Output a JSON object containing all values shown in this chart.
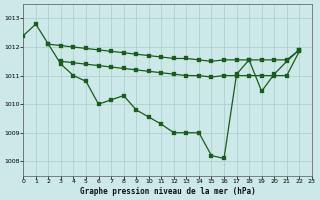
{
  "title": "Graphe pression niveau de la mer (hPa)",
  "bg": "#cce8e8",
  "grid_color": "#aacccc",
  "lc": "#1a5c1a",
  "xlim": [
    0,
    23
  ],
  "ylim": [
    1007.5,
    1013.5
  ],
  "yticks": [
    1008,
    1009,
    1010,
    1011,
    1012,
    1013
  ],
  "xticks": [
    0,
    1,
    2,
    3,
    4,
    5,
    6,
    7,
    8,
    9,
    10,
    11,
    12,
    13,
    14,
    15,
    16,
    17,
    18,
    19,
    20,
    21,
    22,
    23
  ],
  "curve_main_x": [
    0,
    1,
    2,
    3,
    4,
    5,
    6,
    7,
    8,
    9,
    10,
    11,
    12,
    13,
    14,
    15,
    16,
    17,
    18,
    19,
    20,
    21,
    22
  ],
  "curve_main_y": [
    1012.4,
    1012.8,
    1012.1,
    1011.4,
    1011.0,
    1010.8,
    1010.0,
    1010.15,
    1010.3,
    1009.8,
    1009.55,
    1009.3,
    1009.0,
    1009.0,
    1009.0,
    1008.2,
    1008.1,
    1011.05,
    1011.55,
    1010.45,
    1011.05,
    1011.5,
    1011.9
  ],
  "curve_upper_x": [
    2,
    3,
    4,
    5,
    6,
    7,
    8,
    9,
    10,
    11,
    12,
    13,
    14,
    15,
    16,
    17,
    18,
    19,
    20,
    21,
    22
  ],
  "curve_upper_y": [
    1012.1,
    1012.05,
    1012.0,
    1011.95,
    1011.9,
    1011.85,
    1011.8,
    1011.75,
    1011.7,
    1011.65,
    1011.6,
    1011.6,
    1011.55,
    1011.5,
    1011.55,
    1011.55,
    1011.55,
    1011.55,
    1011.55,
    1011.55,
    1011.9
  ],
  "curve_mid_x": [
    3,
    4,
    5,
    6,
    7,
    8,
    9,
    10,
    11,
    12,
    13,
    14,
    15,
    16,
    17,
    18,
    19,
    20,
    21,
    22
  ],
  "curve_mid_y": [
    1011.5,
    1011.45,
    1011.4,
    1011.35,
    1011.3,
    1011.25,
    1011.2,
    1011.15,
    1011.1,
    1011.05,
    1011.0,
    1011.0,
    1010.95,
    1011.0,
    1011.0,
    1011.0,
    1011.0,
    1011.0,
    1011.0,
    1011.85
  ]
}
